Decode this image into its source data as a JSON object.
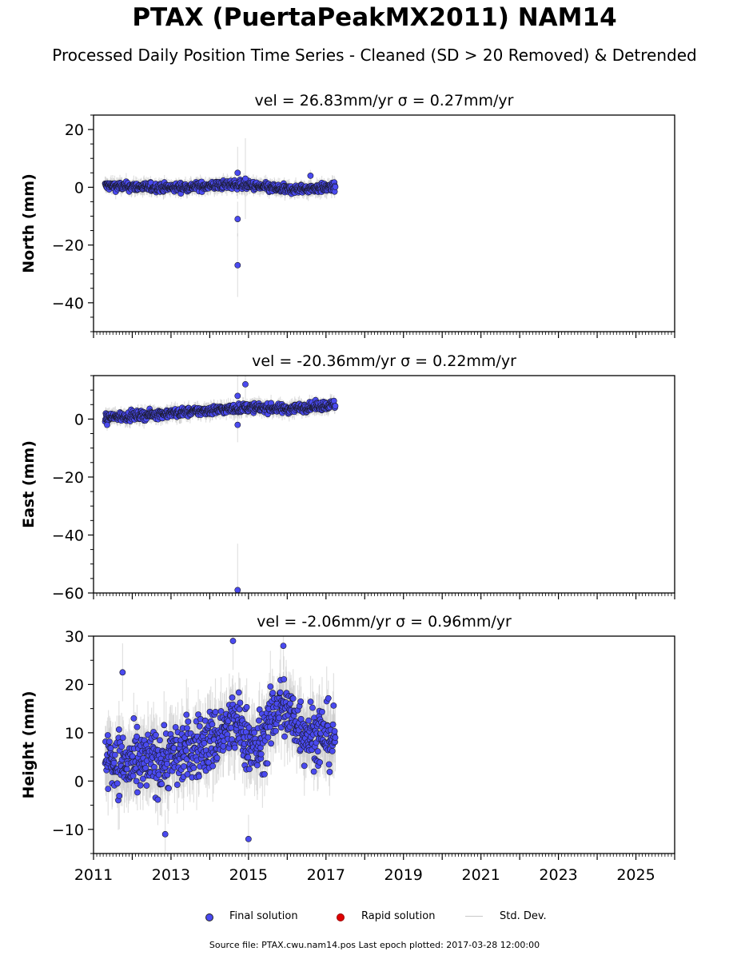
{
  "title": "PTAX (PuertaPeakMX2011) NAM14",
  "subtitle": "Processed Daily Position Time Series - Cleaned (SD > 20 Removed) & Detrended",
  "legend": {
    "final": "Final solution",
    "rapid": "Rapid solution",
    "std": "Std. Dev.",
    "final_color": "#4a4af0",
    "rapid_color": "#e00000",
    "std_color": "#c8c8c8"
  },
  "footer": "Source file: PTAX.cwu.nam14.pos  Last epoch plotted: 2017-03-28 12:00:00",
  "chart_data": [
    {
      "type": "scatter",
      "panel": "north",
      "title": "vel = 26.83mm/yr   σ = 0.27mm/yr",
      "ylabel": "North (mm)",
      "xlim": [
        2011.0,
        2026.0
      ],
      "ylim": [
        -50,
        25
      ],
      "yticks": [
        -40,
        -20,
        0,
        20
      ],
      "ytick_labels": [
        "−40",
        "−20",
        "0",
        "20"
      ],
      "data_range": [
        2011.3,
        2017.24
      ],
      "band": {
        "center": 0.3,
        "spread": 1.6,
        "sd": 2.0
      },
      "anchors": [
        [
          2011.3,
          0.5
        ],
        [
          2013.0,
          -0.2
        ],
        [
          2014.7,
          1.0
        ],
        [
          2016.0,
          -0.8
        ],
        [
          2017.24,
          0.0
        ]
      ],
      "outliers": [
        {
          "x": 2014.72,
          "y": -27,
          "sd": 11
        },
        {
          "x": 2014.72,
          "y": -11,
          "sd": 6
        },
        {
          "x": 2014.72,
          "y": 5,
          "sd": 9
        },
        {
          "x": 2014.92,
          "y": 3,
          "sd": 14
        },
        {
          "x": 2016.6,
          "y": 4,
          "sd": 2
        }
      ]
    },
    {
      "type": "scatter",
      "panel": "east",
      "title": "vel = -20.36mm/yr   σ = 0.22mm/yr",
      "ylabel": "East (mm)",
      "xlim": [
        2011.0,
        2026.0
      ],
      "ylim": [
        -60,
        15
      ],
      "yticks": [
        -60,
        -40,
        -20,
        0
      ],
      "ytick_labels": [
        "−60",
        "−40",
        "−20",
        "0"
      ],
      "data_range": [
        2011.3,
        2017.24
      ],
      "band": {
        "center": 2.5,
        "spread": 1.6,
        "sd": 2.0
      },
      "anchors": [
        [
          2011.3,
          0.5
        ],
        [
          2012.5,
          1.5
        ],
        [
          2014.0,
          3.0
        ],
        [
          2015.0,
          4.0
        ],
        [
          2016.0,
          3.5
        ],
        [
          2017.24,
          5.0
        ]
      ],
      "outliers": [
        {
          "x": 2014.72,
          "y": -59,
          "sd": 16
        },
        {
          "x": 2014.72,
          "y": -2,
          "sd": 6
        },
        {
          "x": 2014.72,
          "y": 8,
          "sd": 7
        },
        {
          "x": 2014.92,
          "y": 12,
          "sd": 6
        },
        {
          "x": 2011.35,
          "y": -2,
          "sd": 2
        }
      ]
    },
    {
      "type": "scatter",
      "panel": "height",
      "title": "vel = -2.06mm/yr   σ = 0.96mm/yr",
      "ylabel": "Height (mm)",
      "xlabel": "",
      "xlim": [
        2011.0,
        2026.0
      ],
      "ylim": [
        -15,
        30
      ],
      "yticks": [
        -10,
        0,
        10,
        20,
        30
      ],
      "ytick_labels": [
        "−10",
        "0",
        "10",
        "20",
        "30"
      ],
      "xticks": [
        2011,
        2013,
        2015,
        2017,
        2019,
        2021,
        2023,
        2025
      ],
      "xtick_labels": [
        "2011",
        "2013",
        "2015",
        "2017",
        "2019",
        "2021",
        "2023",
        "2025"
      ],
      "data_range": [
        2011.3,
        2017.24
      ],
      "band": {
        "center": 8.0,
        "spread": 7.0,
        "sd": 5.0
      },
      "anchors": [
        [
          2011.3,
          5
        ],
        [
          2012.0,
          3
        ],
        [
          2013.0,
          5
        ],
        [
          2014.0,
          8
        ],
        [
          2014.7,
          12
        ],
        [
          2015.2,
          6
        ],
        [
          2015.8,
          16
        ],
        [
          2016.5,
          10
        ],
        [
          2017.24,
          9
        ]
      ],
      "outliers": [
        {
          "x": 2014.6,
          "y": 29,
          "sd": 6
        },
        {
          "x": 2015.0,
          "y": -12,
          "sd": 5
        },
        {
          "x": 2012.85,
          "y": -11,
          "sd": 5
        },
        {
          "x": 2011.75,
          "y": 22.5,
          "sd": 6
        },
        {
          "x": 2015.9,
          "y": 28,
          "sd": 5
        }
      ]
    }
  ]
}
